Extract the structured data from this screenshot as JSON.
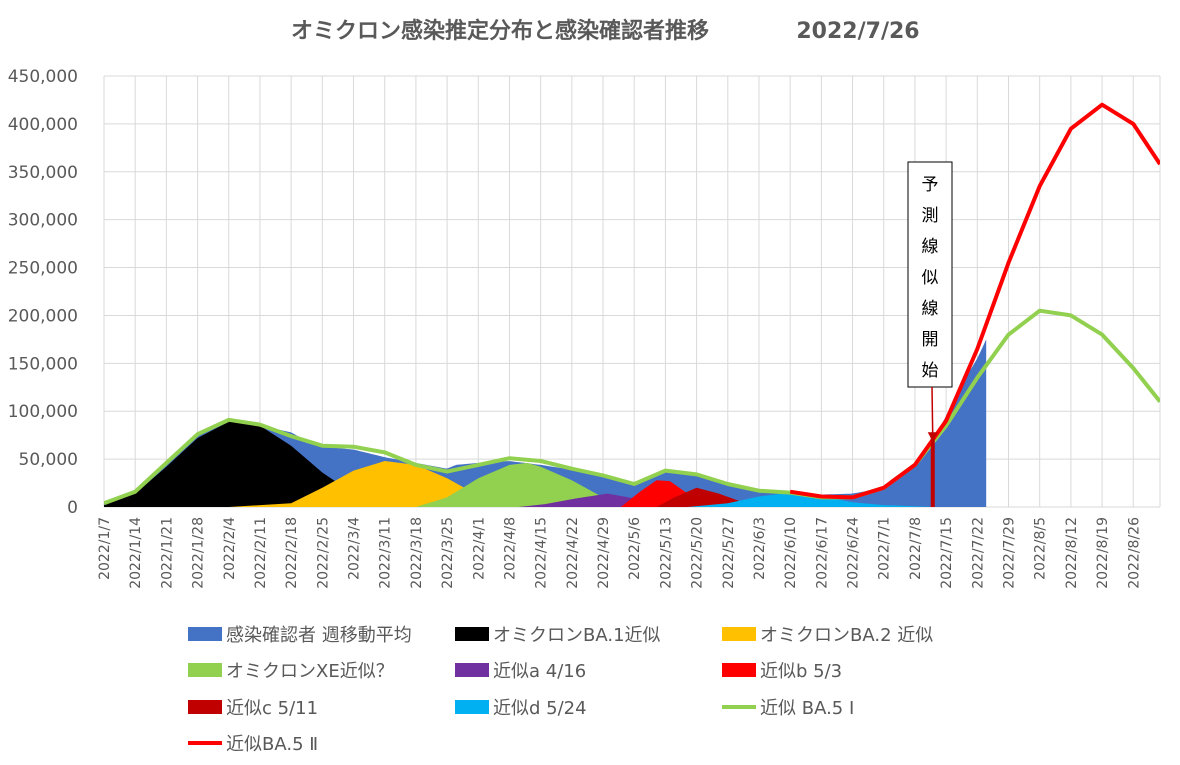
{
  "chart_data": {
    "type": "area",
    "title": "オミクロン感染推定分布と感染確認者推移",
    "date_label": "2022/7/26",
    "x_start": "2022/1/7",
    "x_end": "2022/9/1",
    "x_tick_labels": [
      "2022/1/7",
      "2022/1/14",
      "2022/1/21",
      "2022/1/28",
      "2022/2/4",
      "2022/2/11",
      "2022/2/18",
      "2022/2/25",
      "2022/3/4",
      "2022/3/11",
      "2022/3/18",
      "2022/3/25",
      "2022/4/1",
      "2022/4/8",
      "2022/4/15",
      "2022/4/22",
      "2022/4/29",
      "2022/5/6",
      "2022/5/13",
      "2022/5/20",
      "2022/5/27",
      "2022/6/3",
      "2022/6/10",
      "2022/6/17",
      "2022/6/24",
      "2022/7/1",
      "2022/7/8",
      "2022/7/15",
      "2022/7/22",
      "2022/7/29",
      "2022/8/5",
      "2022/8/12",
      "2022/8/19",
      "2022/8/26"
    ],
    "ylim": [
      0,
      450000
    ],
    "y_tick_labels": [
      "0",
      "50,000",
      "100,000",
      "150,000",
      "200,000",
      "250,000",
      "300,000",
      "350,000",
      "400,000",
      "450,000"
    ],
    "grid": true,
    "legend_position": "bottom",
    "annotation": {
      "text": [
        "予",
        "測",
        "線",
        "似",
        "線",
        "開",
        "始"
      ],
      "date": "2022/7/12",
      "marker_color": "#C00000"
    },
    "series": [
      {
        "name": "感染確認者 週移動平均",
        "style": "bar",
        "color": "#4472C4",
        "points": [
          [
            "2022/1/7",
            4000
          ],
          [
            "2022/1/14",
            16000
          ],
          [
            "2022/1/21",
            46000
          ],
          [
            "2022/1/28",
            76000
          ],
          [
            "2022/2/4",
            89000
          ],
          [
            "2022/2/11",
            87000
          ],
          [
            "2022/2/14",
            82000
          ],
          [
            "2022/2/18",
            78000
          ],
          [
            "2022/2/21",
            70000
          ],
          [
            "2022/2/25",
            63000
          ],
          [
            "2022/3/4",
            60000
          ],
          [
            "2022/3/11",
            52000
          ],
          [
            "2022/3/18",
            46000
          ],
          [
            "2022/3/25",
            40000
          ],
          [
            "2022/3/27",
            44000
          ],
          [
            "2022/4/1",
            46000
          ],
          [
            "2022/4/8",
            48000
          ],
          [
            "2022/4/15",
            44000
          ],
          [
            "2022/4/22",
            39000
          ],
          [
            "2022/4/29",
            33000
          ],
          [
            "2022/5/6",
            24000
          ],
          [
            "2022/5/13",
            38000
          ],
          [
            "2022/5/20",
            33000
          ],
          [
            "2022/5/27",
            24000
          ],
          [
            "2022/6/3",
            17000
          ],
          [
            "2022/6/10",
            15000
          ],
          [
            "2022/6/17",
            13000
          ],
          [
            "2022/6/24",
            14000
          ],
          [
            "2022/7/1",
            20000
          ],
          [
            "2022/7/8",
            45000
          ],
          [
            "2022/7/12",
            70000
          ],
          [
            "2022/7/15",
            95000
          ],
          [
            "2022/7/18",
            125000
          ],
          [
            "2022/7/22",
            155000
          ],
          [
            "2022/7/24",
            175000
          ]
        ]
      },
      {
        "name": "オミクロンBA.1近似",
        "style": "area",
        "color": "#000000",
        "points": [
          [
            "2022/1/7",
            2000
          ],
          [
            "2022/1/14",
            14000
          ],
          [
            "2022/1/21",
            42000
          ],
          [
            "2022/1/28",
            72000
          ],
          [
            "2022/2/4",
            89000
          ],
          [
            "2022/2/7",
            90000
          ],
          [
            "2022/2/11",
            85000
          ],
          [
            "2022/2/18",
            64000
          ],
          [
            "2022/2/25",
            36000
          ],
          [
            "2022/3/4",
            14000
          ],
          [
            "2022/3/11",
            4000
          ],
          [
            "2022/3/18",
            0
          ]
        ]
      },
      {
        "name": "オミクロンBA.2 近似",
        "style": "area",
        "color": "#FFC000",
        "points": [
          [
            "2022/2/4",
            0
          ],
          [
            "2022/2/18",
            4000
          ],
          [
            "2022/2/25",
            20000
          ],
          [
            "2022/3/4",
            38000
          ],
          [
            "2022/3/11",
            48000
          ],
          [
            "2022/3/18",
            44000
          ],
          [
            "2022/3/25",
            30000
          ],
          [
            "2022/4/1",
            12000
          ],
          [
            "2022/4/8",
            3000
          ],
          [
            "2022/4/15",
            0
          ]
        ]
      },
      {
        "name": "オミクロンXE近似？",
        "style": "area",
        "color": "#92D050",
        "points": [
          [
            "2022/3/18",
            0
          ],
          [
            "2022/3/25",
            10000
          ],
          [
            "2022/4/1",
            30000
          ],
          [
            "2022/4/8",
            44000
          ],
          [
            "2022/4/12",
            46000
          ],
          [
            "2022/4/15",
            42000
          ],
          [
            "2022/4/22",
            28000
          ],
          [
            "2022/4/29",
            10000
          ],
          [
            "2022/5/6",
            0
          ]
        ]
      },
      {
        "name": "近似a 4/16",
        "style": "area",
        "color": "#7030A0",
        "points": [
          [
            "2022/4/10",
            0
          ],
          [
            "2022/4/16",
            3000
          ],
          [
            "2022/4/23",
            9000
          ],
          [
            "2022/4/30",
            14000
          ],
          [
            "2022/5/6",
            9000
          ],
          [
            "2022/5/13",
            2000
          ],
          [
            "2022/5/16",
            0
          ]
        ]
      },
      {
        "name": "近似b 5/3",
        "style": "area",
        "color": "#FF0000",
        "points": [
          [
            "2022/5/3",
            0
          ],
          [
            "2022/5/7",
            15000
          ],
          [
            "2022/5/11",
            28000
          ],
          [
            "2022/5/14",
            27000
          ],
          [
            "2022/5/18",
            14000
          ],
          [
            "2022/5/24",
            2000
          ],
          [
            "2022/5/27",
            0
          ]
        ]
      },
      {
        "name": "近似c 5/11",
        "style": "area",
        "color": "#C00000",
        "points": [
          [
            "2022/5/11",
            0
          ],
          [
            "2022/5/15",
            10000
          ],
          [
            "2022/5/20",
            20000
          ],
          [
            "2022/5/25",
            14000
          ],
          [
            "2022/5/31",
            4000
          ],
          [
            "2022/6/5",
            0
          ]
        ]
      },
      {
        "name": "近似d 5/24",
        "style": "area",
        "color": "#00B0F0",
        "points": [
          [
            "2022/5/18",
            0
          ],
          [
            "2022/5/27",
            4000
          ],
          [
            "2022/6/3",
            11000
          ],
          [
            "2022/6/10",
            15000
          ],
          [
            "2022/6/17",
            11000
          ],
          [
            "2022/6/24",
            5000
          ],
          [
            "2022/7/1",
            2000
          ],
          [
            "2022/7/12",
            0
          ]
        ]
      },
      {
        "name": "近似 BA.5 Ⅰ",
        "style": "line",
        "color": "#92D050",
        "points": [
          [
            "2022/1/7",
            4000
          ],
          [
            "2022/1/14",
            16000
          ],
          [
            "2022/1/21",
            46000
          ],
          [
            "2022/1/28",
            76000
          ],
          [
            "2022/2/4",
            91000
          ],
          [
            "2022/2/11",
            86000
          ],
          [
            "2022/2/18",
            74000
          ],
          [
            "2022/2/25",
            64000
          ],
          [
            "2022/3/4",
            63000
          ],
          [
            "2022/3/11",
            57000
          ],
          [
            "2022/3/18",
            44000
          ],
          [
            "2022/3/25",
            37000
          ],
          [
            "2022/4/1",
            44000
          ],
          [
            "2022/4/8",
            51000
          ],
          [
            "2022/4/15",
            48000
          ],
          [
            "2022/4/22",
            40000
          ],
          [
            "2022/4/29",
            33000
          ],
          [
            "2022/5/6",
            24000
          ],
          [
            "2022/5/13",
            38000
          ],
          [
            "2022/5/20",
            34000
          ],
          [
            "2022/5/27",
            24000
          ],
          [
            "2022/6/3",
            17000
          ],
          [
            "2022/6/10",
            15000
          ],
          [
            "2022/6/17",
            10000
          ],
          [
            "2022/6/24",
            10000
          ],
          [
            "2022/7/1",
            20000
          ],
          [
            "2022/7/8",
            44000
          ],
          [
            "2022/7/15",
            85000
          ],
          [
            "2022/7/22",
            135000
          ],
          [
            "2022/7/29",
            180000
          ],
          [
            "2022/8/5",
            205000
          ],
          [
            "2022/8/12",
            200000
          ],
          [
            "2022/8/19",
            180000
          ],
          [
            "2022/8/26",
            145000
          ],
          [
            "2022/9/1",
            110000
          ]
        ]
      },
      {
        "name": "近似BA.5 Ⅱ",
        "style": "line",
        "color": "#FF0000",
        "points": [
          [
            "2022/6/10",
            16000
          ],
          [
            "2022/6/17",
            11000
          ],
          [
            "2022/6/24",
            10000
          ],
          [
            "2022/7/1",
            20000
          ],
          [
            "2022/7/8",
            44000
          ],
          [
            "2022/7/15",
            90000
          ],
          [
            "2022/7/22",
            165000
          ],
          [
            "2022/7/29",
            255000
          ],
          [
            "2022/8/5",
            335000
          ],
          [
            "2022/8/12",
            395000
          ],
          [
            "2022/8/19",
            420000
          ],
          [
            "2022/8/26",
            400000
          ],
          [
            "2022/9/1",
            358000
          ]
        ]
      }
    ]
  }
}
